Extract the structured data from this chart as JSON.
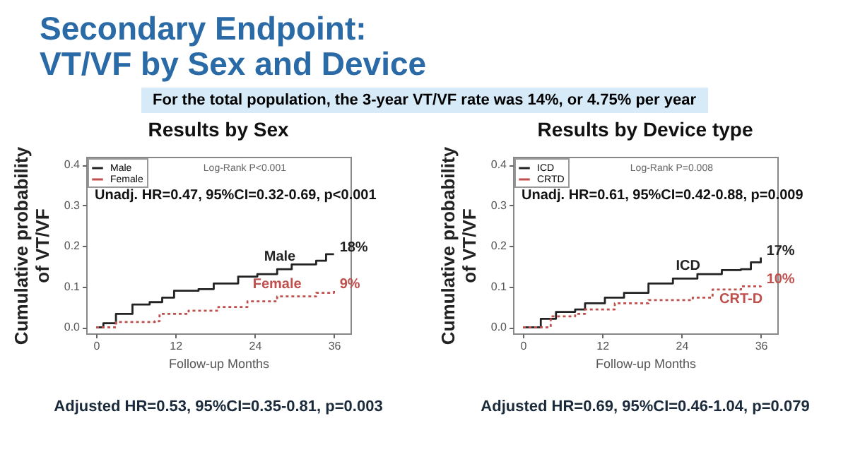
{
  "chart_data": [
    {
      "type": "step",
      "title": "Results by Sex",
      "xlabel": "Follow-up Months",
      "ylabel": "Cumulative probability\nof VT/VF",
      "xlim": [
        -1.5,
        38.5
      ],
      "ylim": [
        -0.015,
        0.42
      ],
      "xticks": [
        0,
        12,
        24,
        36
      ],
      "yticks": [
        {
          "value": 0,
          "label": "0.0"
        },
        {
          "value": 0.1,
          "label": "0.1"
        },
        {
          "value": 0.2,
          "label": "0.2"
        },
        {
          "value": 0.3,
          "label": "0.3"
        },
        {
          "value": 0.4,
          "label": "0.4"
        }
      ],
      "legend": "top left",
      "marker": "none",
      "grid": false,
      "series": [
        {
          "name": "Male",
          "color": "#222222",
          "line_style": "solid",
          "x": [
            0,
            1.1,
            3,
            5.5,
            8.1,
            10,
            11.8,
            15.5,
            17.8,
            21.5,
            24.4,
            27.4,
            29.6,
            33.3,
            34.8,
            36
          ],
          "values": [
            0,
            0.01,
            0.033,
            0.056,
            0.062,
            0.073,
            0.09,
            0.094,
            0.108,
            0.125,
            0.131,
            0.143,
            0.155,
            0.164,
            0.18,
            0.18
          ]
        },
        {
          "name": "Female",
          "color": "#c0504d",
          "line_style": "dotted",
          "x": [
            0,
            3,
            8.9,
            9.6,
            14,
            18.5,
            22.9,
            27.4,
            33.3,
            36
          ],
          "values": [
            0,
            0.013,
            0.015,
            0.033,
            0.041,
            0.05,
            0.064,
            0.076,
            0.085,
            0.09
          ]
        }
      ],
      "annotations": [
        "Secondary Endpoint:",
        "VT/VF by Sex and Device",
        "For the total population, the 3-year VT/VF rate was 14%, or 4.75% per year",
        "Log-Rank P<0.001",
        "Unadj. HR=0.47, 95%CI=0.32-0.69, p<0.001",
        "Adjusted HR=0.53, 95%CI=0.35-0.81, p=0.003",
        {
          "text": "Male",
          "x": 27.8,
          "y": 0.143
        },
        {
          "text": "18%",
          "x": 36,
          "y": 0.18
        },
        {
          "text": "Female",
          "x": 27.4,
          "y": 0.076
        },
        {
          "text": "9%",
          "x": 36,
          "y": 0.09
        }
      ]
    },
    {
      "type": "step",
      "title": "Results by Device type",
      "xlabel": "Follow-up Months",
      "ylabel": "Cumulative probability\nof VT/VF",
      "xlim": [
        -1.5,
        38.5
      ],
      "ylim": [
        -0.015,
        0.42
      ],
      "xticks": [
        0,
        12,
        24,
        36
      ],
      "yticks": [
        {
          "value": 0,
          "label": "0.0"
        },
        {
          "value": 0.1,
          "label": "0.1"
        },
        {
          "value": 0.2,
          "label": "0.2"
        },
        {
          "value": 0.3,
          "label": "0.3"
        },
        {
          "value": 0.4,
          "label": "0.4"
        }
      ],
      "legend": "top left",
      "marker": "none",
      "grid": false,
      "series": [
        {
          "name": "ICD",
          "color": "#222222",
          "line_style": "solid",
          "x": [
            0,
            2.7,
            5,
            7.9,
            9.4,
            12.4,
            15.3,
            19,
            22.7,
            26.4,
            30.1,
            33,
            34.5,
            36
          ],
          "values": [
            0,
            0.021,
            0.038,
            0.044,
            0.059,
            0.073,
            0.085,
            0.108,
            0.12,
            0.131,
            0.141,
            0.143,
            0.16,
            0.172
          ]
        },
        {
          "name": "CRTD",
          "color": "#c0504d",
          "line_style": "dotted",
          "x": [
            0,
            4.2,
            7.9,
            9.4,
            13.9,
            19,
            25.7,
            28.7,
            33,
            36
          ],
          "values": [
            0,
            0.027,
            0.033,
            0.044,
            0.059,
            0.067,
            0.073,
            0.093,
            0.101,
            0.102
          ]
        }
      ],
      "annotations": [
        "Log-Rank P=0.008",
        "Unadj. HR=0.61, 95%CI=0.42-0.88, p=0.009",
        "Adjusted HR=0.69, 95%CI=0.46-1.04, p=0.079",
        {
          "text": "ICD",
          "x": 25,
          "y": 0.12
        },
        {
          "text": "17%",
          "x": 36,
          "y": 0.172
        },
        {
          "text": "CRT-D",
          "x": 33,
          "y": 0.101
        },
        {
          "text": "10%",
          "x": 36,
          "y": 0.102
        }
      ]
    }
  ]
}
